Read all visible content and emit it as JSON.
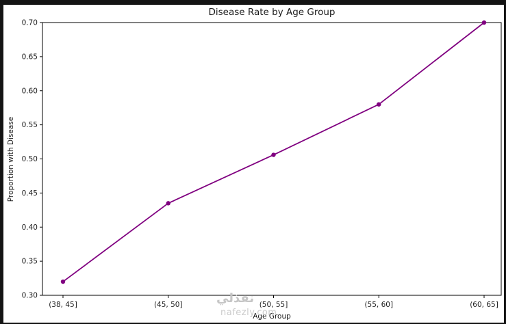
{
  "chart_data": {
    "type": "line",
    "title": "Disease Rate by Age Group",
    "xlabel": "Age Group",
    "ylabel": "Proportion with Disease",
    "categories": [
      "(38, 45]",
      "(45, 50]",
      "(50, 55]",
      "(55, 60]",
      "(60, 65]"
    ],
    "values": [
      0.32,
      0.435,
      0.506,
      0.58,
      0.7
    ],
    "ylim": [
      0.3,
      0.7
    ],
    "yticks": [
      0.3,
      0.35,
      0.4,
      0.45,
      0.5,
      0.55,
      0.6,
      0.65,
      0.7
    ],
    "line_color": "#800080",
    "marker": "circle",
    "marker_size": 3.2,
    "grid": false,
    "legend": "none",
    "plot_bg": "#ffffff",
    "spine_color": "#000000",
    "text_color": "#1a1a1a"
  },
  "watermark": {
    "arabic": "نفذلي",
    "latin": "nafezly.com",
    "color": "#c8c8c8"
  }
}
